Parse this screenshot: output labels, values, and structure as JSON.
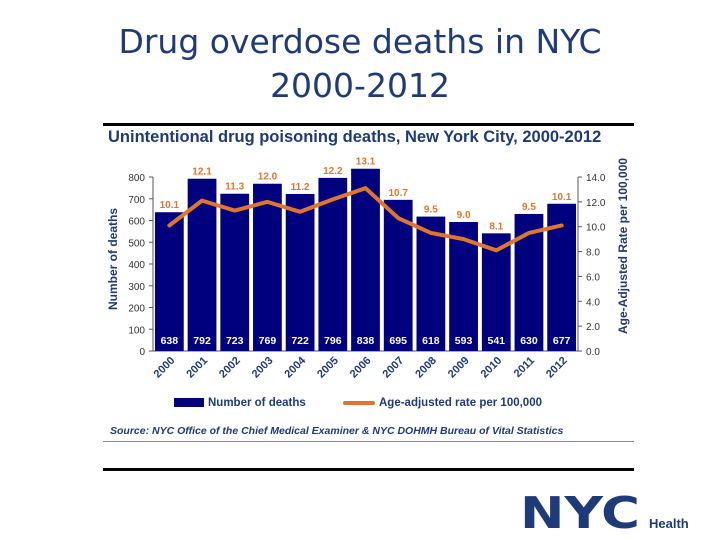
{
  "slide": {
    "title_line1": "Drug overdose deaths in NYC",
    "title_line2": "2000-2012"
  },
  "chart_data": {
    "type": "bar",
    "title": "Unintentional drug poisoning deaths, New York City, 2000-2012",
    "categories": [
      "2000",
      "2001",
      "2002",
      "2003",
      "2004",
      "2005",
      "2006",
      "2007",
      "2008",
      "2009",
      "2010",
      "2011",
      "2012"
    ],
    "series": [
      {
        "name": "Number of deaths",
        "type": "bar",
        "axis": "left",
        "color": "#00007f",
        "values": [
          638,
          792,
          723,
          769,
          722,
          796,
          838,
          695,
          618,
          593,
          541,
          630,
          677
        ]
      },
      {
        "name": "Age-adjusted rate per 100,000",
        "type": "line",
        "axis": "right",
        "color": "#e0762b",
        "values": [
          10.1,
          12.1,
          11.3,
          12.0,
          11.2,
          12.2,
          13.1,
          10.7,
          9.5,
          9.0,
          8.1,
          9.5,
          10.1
        ],
        "labels": [
          "10.1",
          "12.1",
          "11.3",
          "12.0",
          "11.2",
          "12.2",
          "13.1",
          "10.7",
          "9.5",
          "9.0",
          "8.1",
          "9.5",
          "10.1"
        ]
      }
    ],
    "ylabel": "Number of deaths",
    "y2label": "Age-Adjusted Rate per 100,000",
    "ylim": [
      0,
      800
    ],
    "y2lim": [
      0,
      14
    ],
    "yticks": [
      "0",
      "100",
      "200",
      "300",
      "400",
      "500",
      "600",
      "700",
      "800"
    ],
    "y2ticks": [
      "0.0",
      "2.0",
      "4.0",
      "6.0",
      "8.0",
      "10.0",
      "12.0",
      "14.0"
    ],
    "grid": false,
    "legend_position": "bottom",
    "source": "Source: NYC Office of the Chief Medical Examiner & NYC DOHMH Bureau of Vital Statistics"
  },
  "branding": {
    "logo_text": "NYC",
    "department": "Health"
  }
}
